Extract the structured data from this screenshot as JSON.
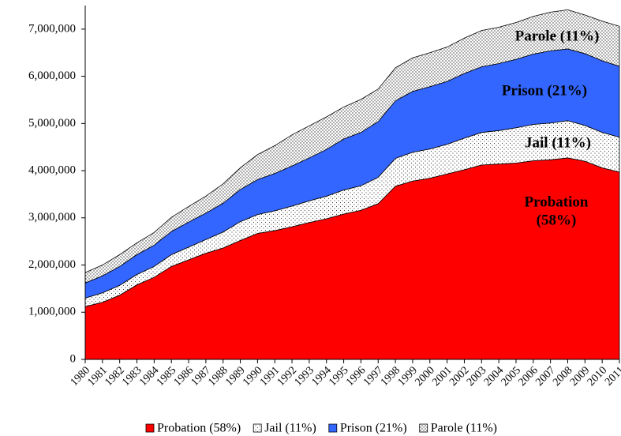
{
  "chart_data": {
    "type": "stacked_area",
    "categories": [
      "1980",
      "1981",
      "1982",
      "1983",
      "1984",
      "1985",
      "1986",
      "1987",
      "1988",
      "1989",
      "1990",
      "1991",
      "1992",
      "1993",
      "1994",
      "1995",
      "1996",
      "1997",
      "1998",
      "1999",
      "2000",
      "2001",
      "2002",
      "2003",
      "2004",
      "2005",
      "2006",
      "2007",
      "2008",
      "2009",
      "2010",
      "2011"
    ],
    "series": [
      {
        "name": "Probation (58%)",
        "color": "#ff0000",
        "pattern": "none",
        "values": [
          1120000,
          1210000,
          1360000,
          1580000,
          1740000,
          1970000,
          2110000,
          2250000,
          2360000,
          2520000,
          2670000,
          2730000,
          2810000,
          2900000,
          2980000,
          3080000,
          3160000,
          3300000,
          3670000,
          3780000,
          3840000,
          3930000,
          4020000,
          4120000,
          4140000,
          4160000,
          4210000,
          4230000,
          4270000,
          4200000,
          4060000,
          3970000
        ]
      },
      {
        "name": "Jail (11%)",
        "color": "#ffffff",
        "pattern": "sparse-dots",
        "values": [
          180000,
          200000,
          210000,
          220000,
          230000,
          250000,
          270000,
          290000,
          340000,
          400000,
          400000,
          420000,
          440000,
          460000,
          480000,
          510000,
          520000,
          560000,
          590000,
          610000,
          620000,
          630000,
          670000,
          690000,
          710000,
          750000,
          770000,
          780000,
          790000,
          760000,
          750000,
          740000
        ]
      },
      {
        "name": "Prison (21%)",
        "color": "#3366ff",
        "pattern": "none",
        "values": [
          320000,
          360000,
          400000,
          420000,
          450000,
          490000,
          530000,
          560000,
          610000,
          680000,
          740000,
          790000,
          850000,
          910000,
          990000,
          1080000,
          1130000,
          1180000,
          1220000,
          1290000,
          1320000,
          1330000,
          1370000,
          1390000,
          1420000,
          1450000,
          1490000,
          1530000,
          1520000,
          1520000,
          1520000,
          1500000
        ]
      },
      {
        "name": "Parole (11%)",
        "color": "#ffffff",
        "pattern": "dense-dots",
        "values": [
          220000,
          230000,
          250000,
          250000,
          270000,
          300000,
          330000,
          360000,
          410000,
          460000,
          530000,
          590000,
          660000,
          680000,
          690000,
          680000,
          700000,
          690000,
          700000,
          710000,
          720000,
          730000,
          750000,
          770000,
          770000,
          780000,
          800000,
          820000,
          830000,
          820000,
          840000,
          850000
        ]
      }
    ],
    "annotations": [
      {
        "series": 3,
        "lines": [
          "Parole (11%)"
        ]
      },
      {
        "series": 2,
        "lines": [
          "Prison (21%)"
        ]
      },
      {
        "series": 1,
        "lines": [
          "Jail (11%)"
        ]
      },
      {
        "series": 0,
        "lines": [
          "Probation",
          "(58%)"
        ]
      }
    ],
    "ylim": [
      0,
      7500000
    ],
    "yticks": [
      0,
      {
        "value": 1000000,
        "label": "1,000,000"
      },
      {
        "value": 2000000,
        "label": "2,000,000"
      },
      {
        "value": 3000000,
        "label": "3,000,000"
      },
      {
        "value": 4000000,
        "label": "4,000,000"
      },
      {
        "value": 5000000,
        "label": "5,000,000"
      },
      {
        "value": 6000000,
        "label": "6,000,000"
      },
      {
        "value": 7000000,
        "label": "7,000,000"
      }
    ],
    "grid": false,
    "legend": "bottom"
  }
}
